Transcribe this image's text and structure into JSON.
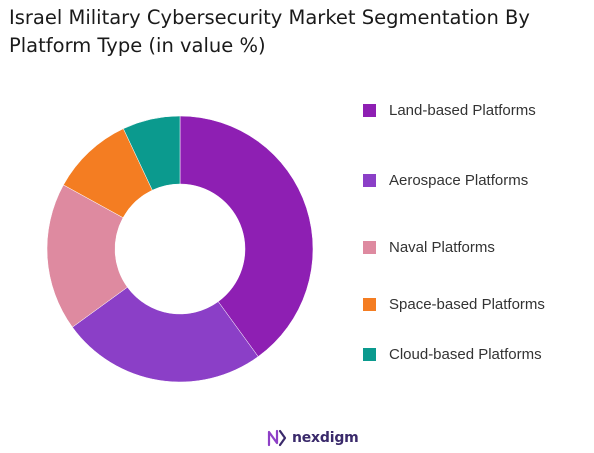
{
  "chart_data": {
    "type": "pie",
    "title": "Israel Military Cybersecurity Market Segmentation By Platform Type (in value %)",
    "categories": [
      "Land-based Platforms",
      "Aerospace Platforms",
      "Naval Platforms",
      "Space-based Platforms",
      "Cloud-based Platforms"
    ],
    "values": [
      40,
      25,
      18,
      10,
      7
    ],
    "colors": [
      "#8E1FB3",
      "#8B3FC7",
      "#DE8AA0",
      "#F47D22",
      "#0B9A8E"
    ],
    "donut": true,
    "legend_position": "right"
  },
  "brand": {
    "name": "nexdigm",
    "color": "#3a2a6b"
  }
}
